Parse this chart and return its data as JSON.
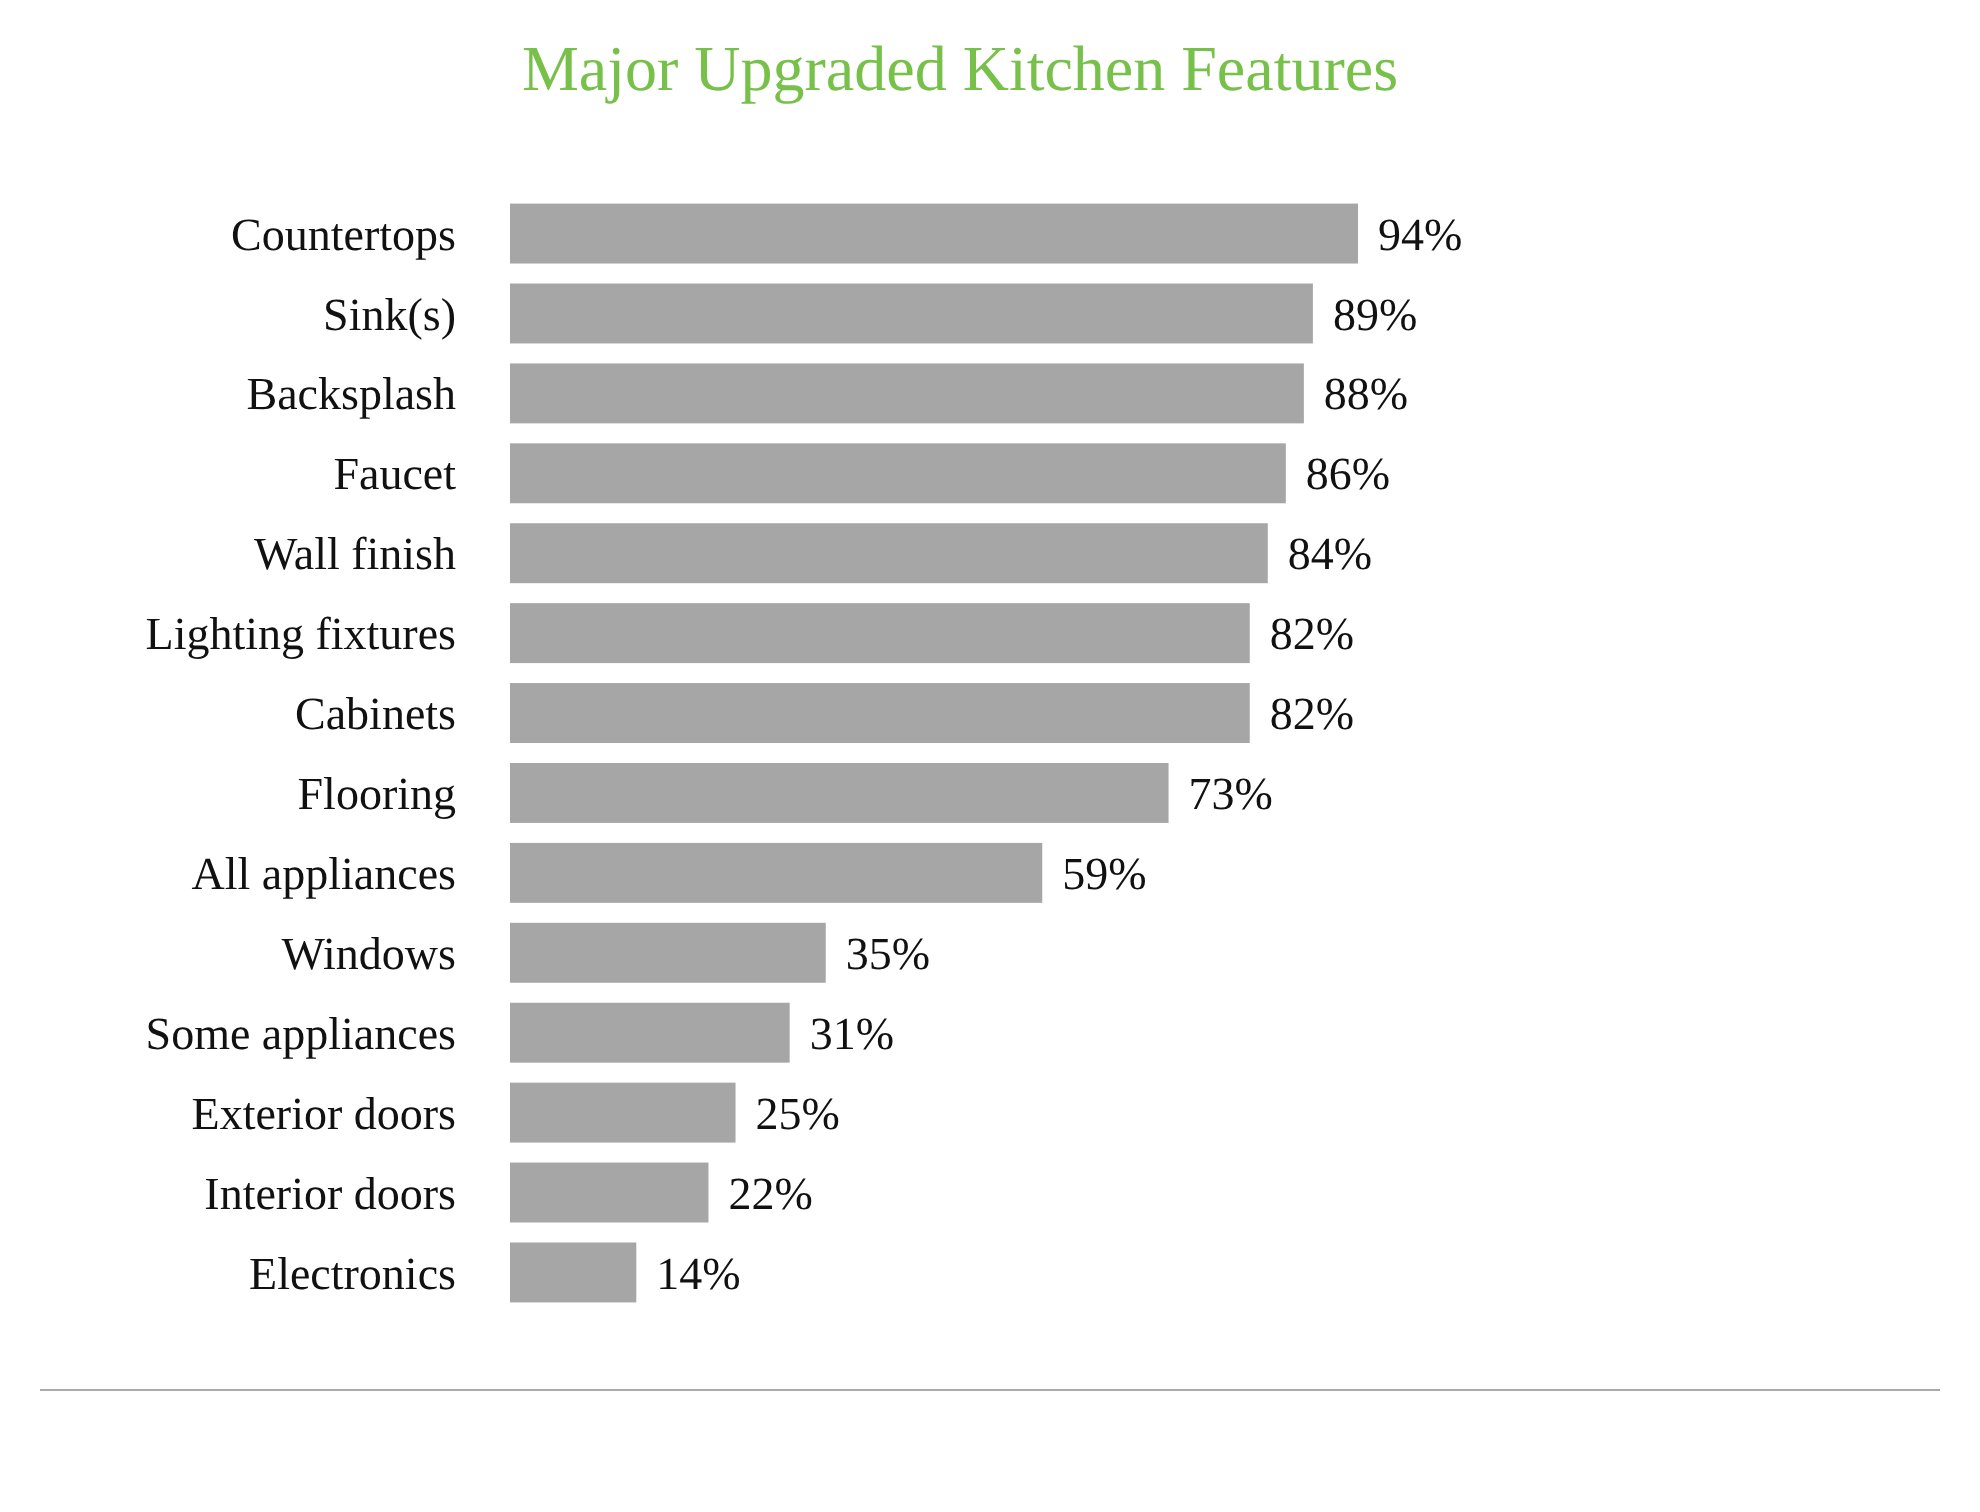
{
  "chart_data": {
    "type": "bar",
    "orientation": "horizontal",
    "title": "Major Upgraded Kitchen Features",
    "categories": [
      "Countertops",
      "Sink(s)",
      "Backsplash",
      "Faucet",
      "Wall finish",
      "Lighting fixtures",
      "Cabinets",
      "Flooring",
      "All appliances",
      "Windows",
      "Some appliances",
      "Exterior doors",
      "Interior doors",
      "Electronics"
    ],
    "values": [
      94,
      89,
      88,
      86,
      84,
      82,
      82,
      73,
      59,
      35,
      31,
      25,
      22,
      14
    ],
    "value_labels": [
      "94%",
      "89%",
      "88%",
      "86%",
      "84%",
      "82%",
      "82%",
      "73%",
      "59%",
      "35%",
      "31%",
      "25%",
      "22%",
      "14%"
    ],
    "color": "#a6a6a6"
  }
}
